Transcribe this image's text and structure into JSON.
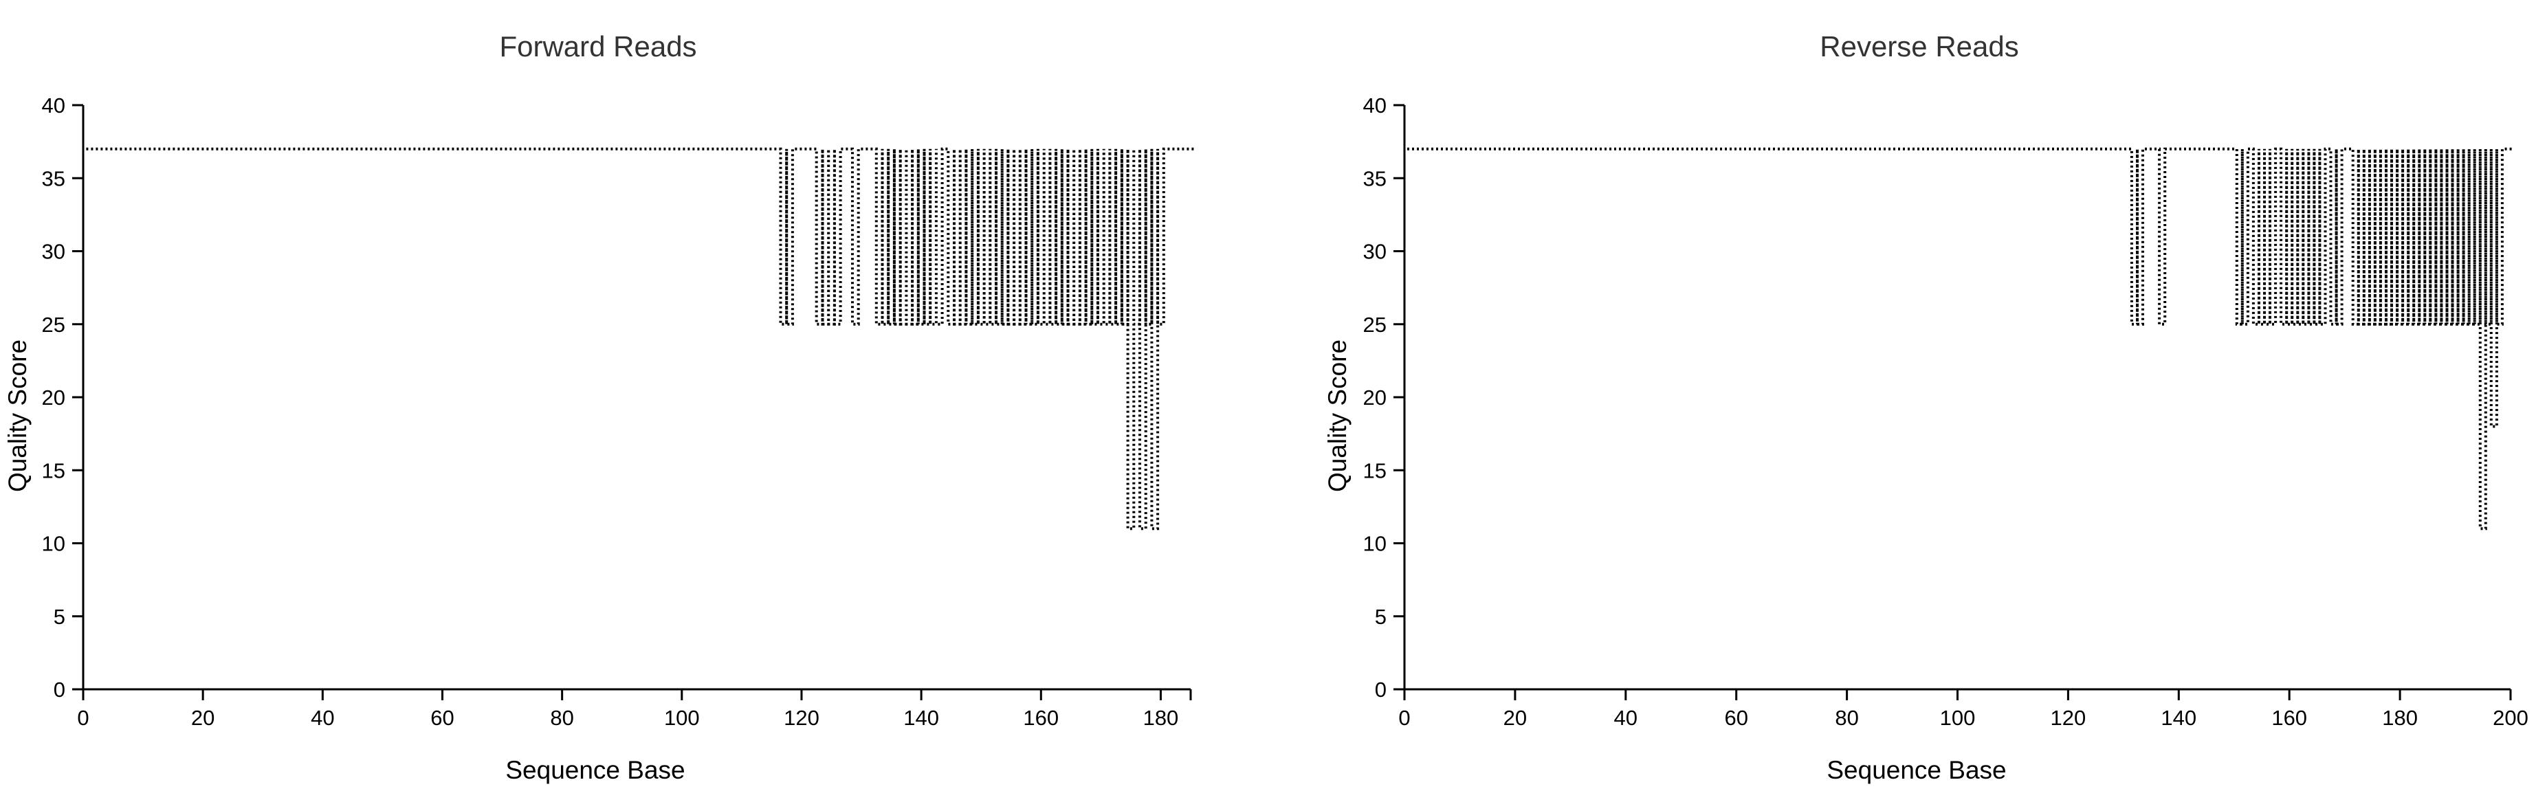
{
  "chart_data": [
    {
      "type": "line",
      "title": "Forward Reads",
      "xlabel": "Sequence Base",
      "ylabel": "Quality Score",
      "xlim": [
        0,
        185
      ],
      "ylim": [
        0,
        40
      ],
      "x_ticks": [
        0,
        20,
        40,
        60,
        80,
        100,
        120,
        140,
        160,
        180
      ],
      "y_ticks": [
        0,
        5,
        10,
        15,
        20,
        25,
        30,
        35,
        40
      ],
      "grid": false,
      "legend": "none",
      "upper_quality": 37,
      "series": [
        {
          "values": [
            [
              1,
              116,
              37
            ],
            [
              117,
              117,
              25
            ],
            [
              118,
              118,
              25
            ],
            [
              119,
              122,
              37
            ],
            [
              123,
              123,
              25
            ],
            [
              124,
              124,
              25
            ],
            [
              125,
              125,
              25
            ],
            [
              126,
              126,
              25
            ],
            [
              127,
              128,
              37
            ],
            [
              129,
              129,
              25
            ],
            [
              130,
              132,
              37
            ],
            [
              133,
              133,
              25
            ],
            [
              134,
              134,
              25
            ],
            [
              135,
              135,
              25
            ],
            [
              136,
              136,
              25
            ],
            [
              137,
              137,
              25
            ],
            [
              138,
              138,
              25
            ],
            [
              139,
              139,
              25
            ],
            [
              140,
              140,
              25
            ],
            [
              141,
              141,
              25
            ],
            [
              142,
              142,
              25
            ],
            [
              143,
              143,
              25
            ],
            [
              144,
              144,
              37
            ],
            [
              145,
              145,
              25
            ],
            [
              146,
              146,
              25
            ],
            [
              147,
              147,
              25
            ],
            [
              148,
              148,
              25
            ],
            [
              149,
              149,
              25
            ],
            [
              150,
              150,
              25
            ],
            [
              151,
              151,
              25
            ],
            [
              152,
              152,
              25
            ],
            [
              153,
              153,
              25
            ],
            [
              154,
              154,
              25
            ],
            [
              155,
              155,
              25
            ],
            [
              156,
              156,
              25
            ],
            [
              157,
              157,
              25
            ],
            [
              158,
              158,
              25
            ],
            [
              159,
              159,
              25
            ],
            [
              160,
              160,
              25
            ],
            [
              161,
              161,
              25
            ],
            [
              162,
              162,
              25
            ],
            [
              163,
              163,
              25
            ],
            [
              164,
              164,
              25
            ],
            [
              165,
              165,
              25
            ],
            [
              166,
              166,
              25
            ],
            [
              167,
              167,
              25
            ],
            [
              168,
              168,
              25
            ],
            [
              169,
              169,
              25
            ],
            [
              170,
              170,
              25
            ],
            [
              171,
              171,
              25
            ],
            [
              172,
              172,
              25
            ],
            [
              173,
              173,
              25
            ],
            [
              174,
              174,
              25
            ],
            [
              175,
              175,
              11
            ],
            [
              176,
              176,
              25
            ],
            [
              177,
              177,
              11
            ],
            [
              178,
              178,
              25
            ],
            [
              179,
              179,
              11
            ],
            [
              180,
              180,
              25
            ],
            [
              181,
              185,
              37
            ]
          ]
        }
      ]
    },
    {
      "type": "line",
      "title": "Reverse Reads",
      "xlabel": "Sequence Base",
      "ylabel": "Quality Score",
      "xlim": [
        0,
        200
      ],
      "ylim": [
        0,
        40
      ],
      "x_ticks": [
        0,
        20,
        40,
        60,
        80,
        100,
        120,
        140,
        160,
        180,
        200
      ],
      "y_ticks": [
        0,
        5,
        10,
        15,
        20,
        25,
        30,
        35,
        40
      ],
      "grid": false,
      "legend": "none",
      "upper_quality": 37,
      "series": [
        {
          "values": [
            [
              1,
              131,
              37
            ],
            [
              132,
              132,
              25
            ],
            [
              133,
              133,
              25
            ],
            [
              134,
              136,
              37
            ],
            [
              137,
              137,
              25
            ],
            [
              138,
              150,
              37
            ],
            [
              151,
              151,
              25
            ],
            [
              152,
              152,
              25
            ],
            [
              153,
              153,
              37
            ],
            [
              154,
              154,
              25
            ],
            [
              155,
              155,
              25
            ],
            [
              156,
              156,
              25
            ],
            [
              157,
              157,
              25
            ],
            [
              158,
              158,
              37
            ],
            [
              159,
              159,
              25
            ],
            [
              160,
              160,
              25
            ],
            [
              161,
              161,
              25
            ],
            [
              162,
              162,
              25
            ],
            [
              163,
              163,
              25
            ],
            [
              164,
              164,
              25
            ],
            [
              165,
              165,
              25
            ],
            [
              166,
              166,
              25
            ],
            [
              167,
              167,
              37
            ],
            [
              168,
              168,
              25
            ],
            [
              169,
              169,
              25
            ],
            [
              170,
              171,
              37
            ],
            [
              172,
              172,
              25
            ],
            [
              173,
              173,
              25
            ],
            [
              174,
              174,
              25
            ],
            [
              175,
              175,
              25
            ],
            [
              176,
              176,
              25
            ],
            [
              177,
              177,
              25
            ],
            [
              178,
              178,
              25
            ],
            [
              179,
              179,
              25
            ],
            [
              180,
              180,
              25
            ],
            [
              181,
              181,
              25
            ],
            [
              182,
              182,
              25
            ],
            [
              183,
              183,
              25
            ],
            [
              184,
              184,
              25
            ],
            [
              185,
              185,
              25
            ],
            [
              186,
              186,
              25
            ],
            [
              187,
              187,
              25
            ],
            [
              188,
              188,
              25
            ],
            [
              189,
              189,
              25
            ],
            [
              190,
              190,
              25
            ],
            [
              191,
              191,
              25
            ],
            [
              192,
              192,
              25
            ],
            [
              193,
              193,
              25
            ],
            [
              194,
              194,
              25
            ],
            [
              195,
              195,
              11
            ],
            [
              196,
              196,
              25
            ],
            [
              197,
              197,
              18
            ],
            [
              198,
              198,
              25
            ],
            [
              199,
              200,
              37
            ]
          ]
        }
      ]
    }
  ]
}
